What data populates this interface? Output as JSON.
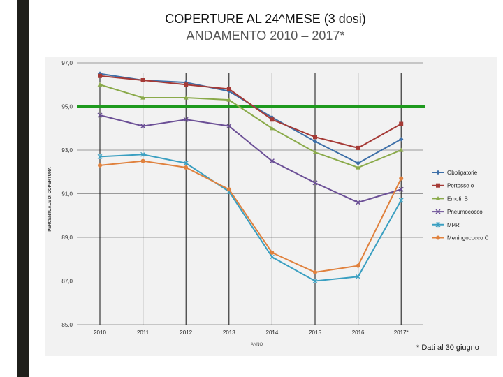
{
  "title": "COPERTURE AL 24^MESE (3 dosi)",
  "subtitle": "ANDAMENTO 2010 – 2017*",
  "footnote": "* Dati al 30 giugno",
  "chart_data": {
    "type": "line",
    "categories": [
      "2010",
      "2011",
      "2012",
      "2013",
      "2014",
      "2015",
      "2016",
      "2017*"
    ],
    "xlabel": "ANNO",
    "ylabel": "PERCENTUALE DI COPERTURA",
    "ylim": [
      85.0,
      97.0
    ],
    "yticks": [
      "85,0",
      "87,0",
      "89,0",
      "91,0",
      "93,0",
      "95,0",
      "97,0"
    ],
    "grid": true,
    "legend_position": "right",
    "reference_line": {
      "value": 95.0,
      "color": "#1e9a1e"
    },
    "series": [
      {
        "name": "Obbligatorie",
        "color": "#3d6fa8",
        "marker": "diamond",
        "values": [
          96.5,
          96.2,
          96.1,
          95.7,
          94.5,
          93.4,
          92.4,
          93.5
        ]
      },
      {
        "name": "Pertosse o",
        "color": "#a53a36",
        "marker": "square",
        "values": [
          96.4,
          96.2,
          96.0,
          95.8,
          94.4,
          93.6,
          93.1,
          94.2
        ]
      },
      {
        "name": "Emofil B",
        "color": "#8aaa4a",
        "marker": "triangle",
        "values": [
          96.0,
          95.4,
          95.4,
          95.3,
          94.0,
          92.9,
          92.2,
          93.0
        ]
      },
      {
        "name": "Pneumococco",
        "color": "#6b4f96",
        "marker": "x",
        "values": [
          94.6,
          94.1,
          94.4,
          94.1,
          92.5,
          91.5,
          90.6,
          91.2
        ]
      },
      {
        "name": "MPR",
        "color": "#3a9fc1",
        "marker": "star",
        "values": [
          92.7,
          92.8,
          92.4,
          91.1,
          88.1,
          87.0,
          87.2,
          90.7
        ]
      },
      {
        "name": "Meningococco C",
        "color": "#e0813d",
        "marker": "circle",
        "values": [
          92.3,
          92.5,
          92.2,
          91.2,
          88.3,
          87.4,
          87.7,
          91.7
        ]
      }
    ]
  }
}
